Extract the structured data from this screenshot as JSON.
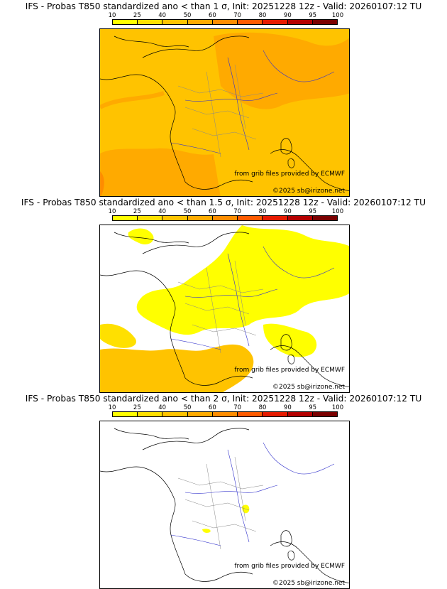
{
  "palette": {
    "levels": [
      "10",
      "25",
      "40",
      "50",
      "60",
      "70",
      "80",
      "90",
      "95",
      "100"
    ],
    "colors": [
      "#ffff00",
      "#ffe000",
      "#ffc300",
      "#ffaa00",
      "#ff8c00",
      "#ff5a00",
      "#e61a00",
      "#b40000",
      "#7a0000"
    ]
  },
  "panels": [
    {
      "title": "IFS - Probas T850  standardized ano < than 1 σ, Init: 20251228 12z - Valid: 20260107:12 TU",
      "source": "from grib files provided by ECMWF",
      "copyright": "©2025 sb@irizone.net",
      "fill": "mostly 40-50%"
    },
    {
      "title": "IFS - Probas T850  standardized ano < than 1.5 σ, Init: 20251228 12z - Valid: 20260107:12 TU",
      "source": "from grib files provided by ECMWF",
      "copyright": "©2025 sb@irizone.net",
      "fill": "10-40% patches"
    },
    {
      "title": "IFS - Probas T850  standardized ano < than 2 σ, Init: 20251228 12z - Valid: 20260107:12 TU",
      "source": "from grib files provided by ECMWF",
      "copyright": "©2025 sb@irizone.net",
      "fill": "almost none"
    }
  ]
}
